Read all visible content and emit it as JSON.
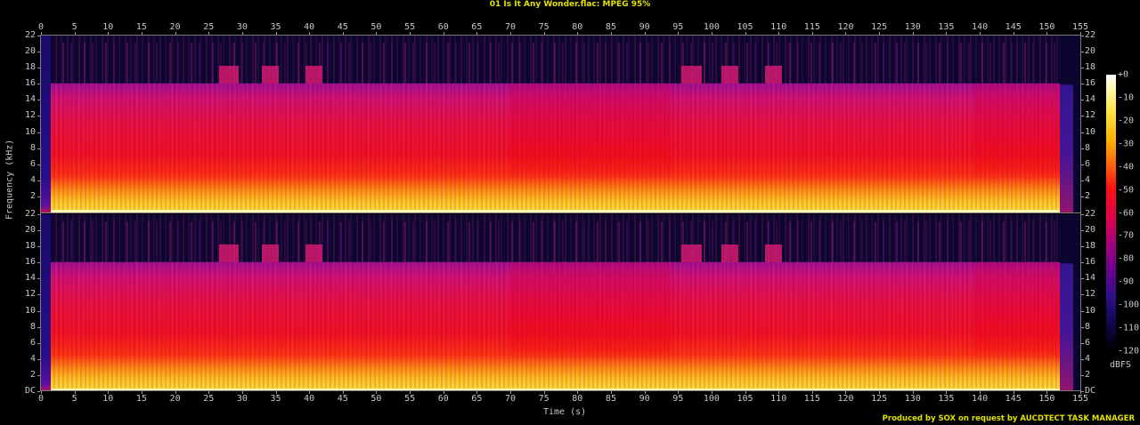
{
  "title": "01 Is It Any Wonder.flac: MPEG 95%",
  "credit": "Produced by SOX on request by AUCDTECT TASK MANAGER",
  "chart_data": {
    "type": "heatmap",
    "subtype": "spectrogram",
    "title": "01 Is It Any Wonder.flac: MPEG 95%",
    "xlabel": "Time (s)",
    "ylabel": "Frequency (kHz)",
    "x_range": [
      0,
      155
    ],
    "y_range": [
      0,
      22
    ],
    "x_ticks": [
      0,
      5,
      10,
      15,
      20,
      25,
      30,
      35,
      40,
      45,
      50,
      55,
      60,
      65,
      70,
      75,
      80,
      85,
      90,
      95,
      100,
      105,
      110,
      115,
      120,
      125,
      130,
      135,
      140,
      145,
      150,
      155
    ],
    "y_ticks_top": [
      "22",
      "20",
      "18",
      "16",
      "14",
      "12",
      "10",
      "8",
      "6",
      "4",
      "2"
    ],
    "y_ticks_bottom": [
      "22",
      "20",
      "18",
      "16",
      "14",
      "12",
      "10",
      "8",
      "6",
      "4",
      "2",
      "DC"
    ],
    "channels": [
      "Channel 1 (top)",
      "Channel 2 (bottom)"
    ],
    "colorbar": {
      "label": "dBFS",
      "ticks": [
        "+0",
        "-10",
        "-20",
        "-30",
        "-40",
        "-50",
        "-60",
        "-70",
        "-80",
        "-90",
        "-100",
        "-110",
        "-120"
      ],
      "range": [
        -120,
        0
      ]
    },
    "observations": {
      "lowpass_cutoff_khz": 16,
      "signal_start_s": 1.5,
      "signal_end_s": 152,
      "bright_bursts_above_cutoff_s": [
        [
          26.5,
          29.5
        ],
        [
          33,
          35.5
        ],
        [
          39.5,
          42
        ],
        [
          95.5,
          98.5
        ],
        [
          101.5,
          104
        ],
        [
          108,
          110.5
        ]
      ],
      "quieter_sections_s": [
        [
          70,
          94
        ],
        [
          139,
          152
        ]
      ]
    }
  },
  "axes": {
    "x_labels": [
      "0",
      "5",
      "10",
      "15",
      "20",
      "25",
      "30",
      "35",
      "40",
      "45",
      "50",
      "55",
      "60",
      "65",
      "70",
      "75",
      "80",
      "85",
      "90",
      "95",
      "100",
      "105",
      "110",
      "115",
      "120",
      "125",
      "130",
      "135",
      "140",
      "145",
      "150",
      "155"
    ],
    "x_title": "Time (s)",
    "y_title": "Frequency (kHz)",
    "y_left_top": [
      "22",
      "20",
      "18",
      "16",
      "14",
      "12",
      "10",
      "8",
      "6",
      "4",
      "2"
    ],
    "y_left_bottom": [
      "22",
      "20",
      "18",
      "16",
      "14",
      "12",
      "10",
      "8",
      "6",
      "4",
      "2",
      "DC"
    ],
    "y_right_top": [
      "22",
      "20",
      "18",
      "16",
      "14",
      "12",
      "10",
      "8",
      "6",
      "4",
      "2"
    ],
    "y_right_bottom": [
      "22",
      "20",
      "18",
      "16",
      "14",
      "12",
      "10",
      "8",
      "6",
      "4",
      "2",
      "DC"
    ]
  },
  "colorbar": {
    "labels": [
      "+0",
      "-10",
      "-20",
      "-30",
      "-40",
      "-50",
      "-60",
      "-70",
      "-80",
      "-90",
      "-100",
      "-110",
      "-120"
    ],
    "unit": "dBFS"
  }
}
